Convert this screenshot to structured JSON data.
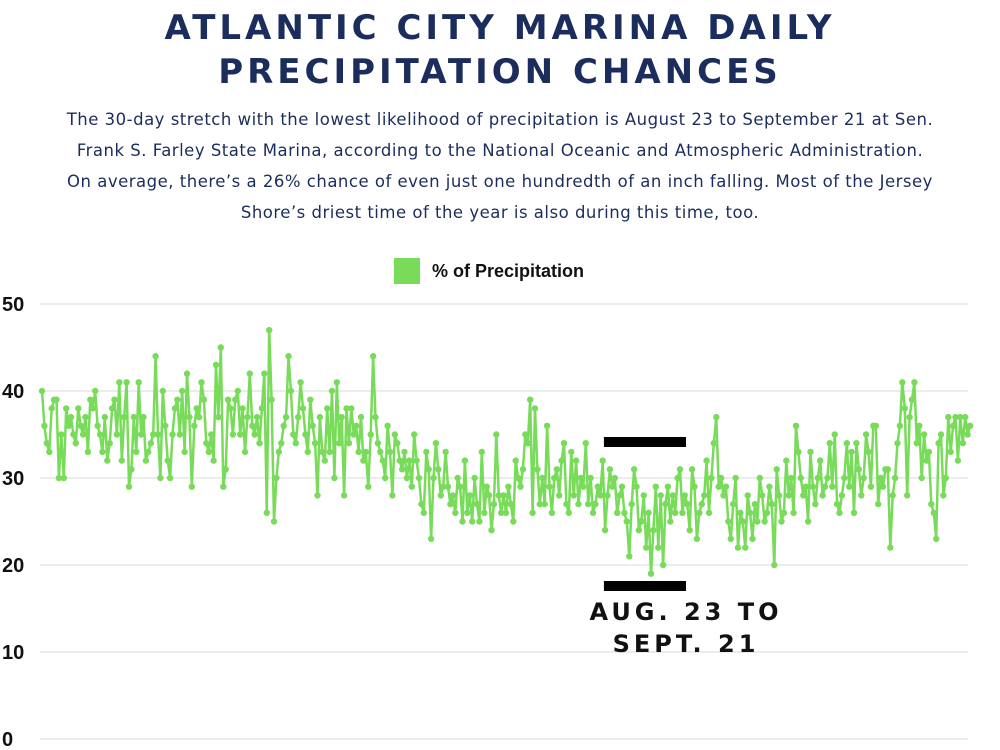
{
  "title_line1": "ATLANTIC CITY MARINA DAILY",
  "title_line2": "PRECIPITATION CHANCES",
  "subtitle_lines": [
    "The 30-day stretch with the lowest likelihood of precipitation is August 23 to September 21 at Sen.",
    "Frank S. Farley State Marina, according to the National Oceanic and Atmospheric Administration.",
    "On average, there’s a  26% chance of even just one hundredth of an inch falling. Most of the Jersey",
    "Shore’s driest time of the year is also during this time, too."
  ],
  "colors": {
    "line": "#78dc5a",
    "title": "#1b2d5c",
    "bracket": "#000000",
    "grid": "#d9d9d9"
  },
  "chart_data": {
    "type": "line",
    "legend": "% of Precipitation",
    "legend_position": "top-center",
    "grid": true,
    "ylim": [
      0,
      50
    ],
    "yticks": [
      0,
      10,
      20,
      30,
      40,
      50
    ],
    "xlabel": "",
    "ylabel": "",
    "annotation": {
      "line1": "AUG. 23 TO",
      "line2": "SEPT. 21",
      "day_start": 235,
      "day_end": 264
    },
    "series": [
      {
        "name": "% of Precipitation",
        "values": [
          40,
          36,
          34,
          33,
          38,
          39,
          39,
          30,
          35,
          30,
          38,
          36,
          37,
          35,
          34,
          38,
          36,
          35,
          37,
          33,
          39,
          38,
          40,
          36,
          35,
          33,
          37,
          32,
          34,
          38,
          39,
          35,
          41,
          32,
          37,
          41,
          29,
          31,
          37,
          33,
          41,
          35,
          37,
          32,
          33,
          34,
          35,
          44,
          35,
          30,
          40,
          36,
          32,
          30,
          35,
          38,
          39,
          35,
          40,
          33,
          42,
          37,
          29,
          36,
          38,
          37,
          41,
          39,
          34,
          33,
          35,
          32,
          43,
          37,
          45,
          29,
          31,
          39,
          38,
          35,
          39,
          40,
          35,
          38,
          33,
          37,
          42,
          36,
          35,
          37,
          34,
          38,
          42,
          26,
          47,
          39,
          25,
          30,
          33,
          34,
          36,
          37,
          44,
          40,
          35,
          34,
          37,
          41,
          38,
          35,
          33,
          39,
          36,
          34,
          28,
          37,
          33,
          32,
          38,
          33,
          40,
          30,
          41,
          34,
          37,
          28,
          38,
          34,
          38,
          35,
          36,
          33,
          37,
          32,
          33,
          29,
          35,
          44,
          37,
          34,
          33,
          32,
          30,
          36,
          33,
          28,
          35,
          34,
          32,
          31,
          33,
          30,
          32,
          29,
          35,
          32,
          30,
          27,
          26,
          33,
          31,
          23,
          30,
          34,
          31,
          28,
          29,
          33,
          29,
          27,
          28,
          26,
          30,
          29,
          25,
          32,
          26,
          28,
          25,
          30,
          27,
          25,
          33,
          26,
          29,
          28,
          24,
          27,
          35,
          28,
          26,
          28,
          26,
          29,
          27,
          25,
          32,
          30,
          29,
          31,
          35,
          34,
          39,
          26,
          38,
          31,
          27,
          30,
          27,
          36,
          29,
          26,
          30,
          31,
          28,
          32,
          34,
          27,
          26,
          33,
          28,
          32,
          27,
          30,
          29,
          34,
          27,
          30,
          26,
          27,
          29,
          28,
          32,
          24,
          28,
          31,
          29,
          30,
          26,
          28,
          29,
          26,
          25,
          21,
          27,
          31,
          29,
          24,
          25,
          28,
          22,
          26,
          19,
          24,
          29,
          22,
          28,
          20,
          27,
          29,
          25,
          28,
          26,
          30,
          31,
          26,
          28,
          27,
          24,
          31,
          29,
          23,
          26,
          27,
          28,
          32,
          26,
          30,
          34,
          37,
          29,
          30,
          28,
          29,
          25,
          23,
          27,
          30,
          22,
          26,
          25,
          22,
          28,
          26,
          23,
          27,
          25,
          30,
          28,
          25,
          26,
          29,
          27,
          20,
          31,
          28,
          25,
          26,
          32,
          28,
          30,
          26,
          36,
          33,
          30,
          28,
          29,
          25,
          33,
          29,
          27,
          30,
          32,
          28,
          29,
          30,
          34,
          29,
          35,
          27,
          26,
          28,
          30,
          34,
          29,
          33,
          26,
          34,
          31,
          28,
          30,
          35,
          33,
          29,
          36,
          36,
          27,
          30,
          29,
          31,
          31,
          22,
          28,
          30,
          34,
          36,
          41,
          38,
          28,
          37,
          39,
          41,
          34,
          36,
          30,
          35,
          32,
          33,
          27,
          26,
          23,
          34,
          35,
          28,
          30,
          37,
          33,
          36,
          37,
          32,
          37,
          34,
          37,
          35,
          36
        ]
      }
    ]
  }
}
